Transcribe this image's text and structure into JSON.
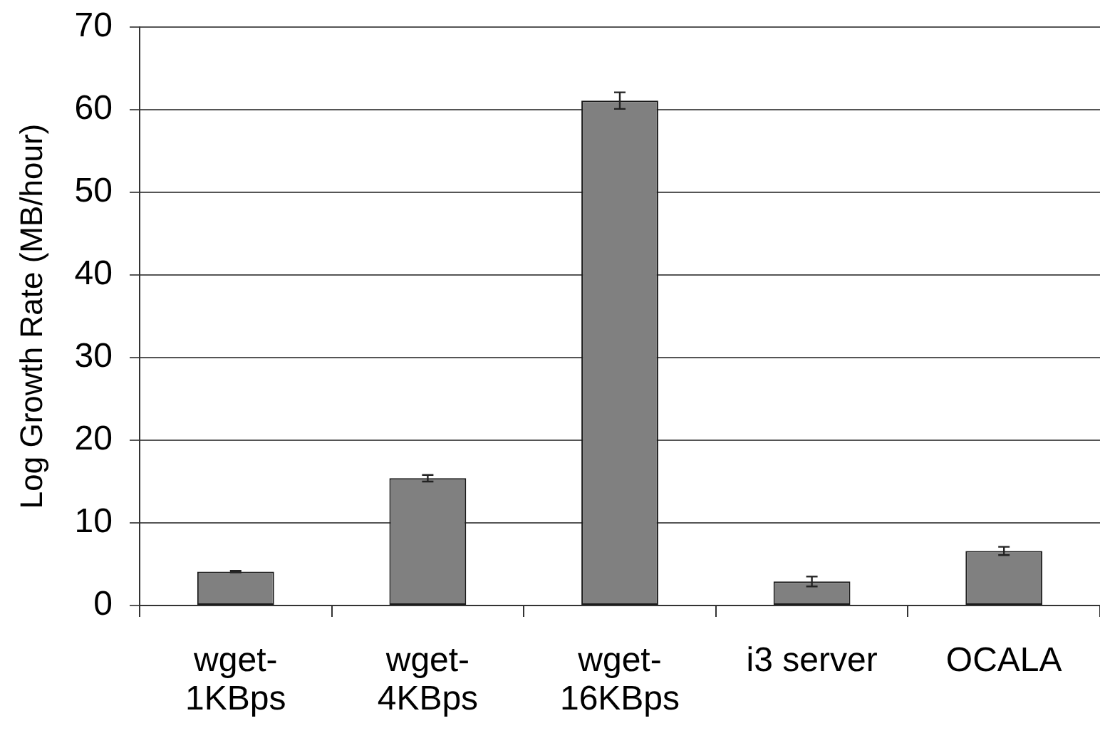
{
  "chart_data": {
    "type": "bar",
    "ylabel": "Log Growth Rate (MB/hour)",
    "categories": [
      "wget-1KBps",
      "wget-4KBps",
      "wget-16KBps",
      "i3 server",
      "OCALA"
    ],
    "values": [
      4.1,
      15.4,
      61.1,
      2.9,
      6.6
    ],
    "errors": [
      0.1,
      0.4,
      1.0,
      0.6,
      0.5
    ],
    "color": "#808080",
    "ylim": [
      0,
      70
    ],
    "yticks": [
      0,
      10,
      20,
      30,
      40,
      50,
      60,
      70
    ],
    "grid": "y"
  }
}
